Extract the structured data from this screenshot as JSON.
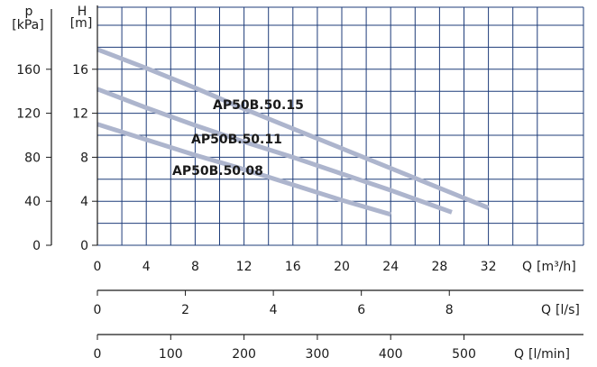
{
  "chart_data": {
    "type": "line",
    "title": "",
    "colors": {
      "curve": "#adb5cd",
      "grid": "#1f3d7a",
      "axis": "#1a1a1a",
      "text": "#1a1a1a"
    },
    "grid": true,
    "y_head": {
      "label": "H",
      "unit": "[m]",
      "ticks": [
        0,
        4,
        8,
        12,
        16
      ],
      "ylim": [
        0,
        20
      ]
    },
    "p_axis": {
      "label": "p",
      "unit": "[kPa]",
      "ticks": [
        0,
        40,
        80,
        120,
        160
      ],
      "range": [
        0,
        200
      ]
    },
    "x_flow": {
      "label": "Q",
      "unit": "[m³/h]",
      "ticks": [
        0,
        4,
        8,
        12,
        16,
        20,
        24,
        28,
        32
      ],
      "xlim": [
        0,
        36
      ]
    },
    "x_ls": {
      "label": "Q",
      "unit": "[l/s]",
      "ticks": [
        0,
        2,
        4,
        6,
        8
      ],
      "range": [
        0,
        10
      ]
    },
    "x_lmin": {
      "label": "Q",
      "unit": "[l/min]",
      "ticks": [
        0,
        100,
        200,
        300,
        400,
        500
      ],
      "range": [
        0,
        600
      ]
    },
    "series": [
      {
        "name": "AP50B.50.15",
        "x": [
          0,
          4,
          8,
          12,
          16,
          20,
          24,
          28,
          32
        ],
        "y": [
          17.8,
          16.1,
          14.3,
          12.4,
          10.6,
          8.8,
          7.0,
          5.2,
          3.4
        ]
      },
      {
        "name": "AP50B.50.11",
        "x": [
          0,
          4,
          8,
          12,
          16,
          20,
          24,
          29
        ],
        "y": [
          14.2,
          12.5,
          10.9,
          9.4,
          8.0,
          6.5,
          5.0,
          3.0
        ]
      },
      {
        "name": "AP50B.50.08",
        "x": [
          0,
          4,
          8,
          12,
          16,
          20,
          24
        ],
        "y": [
          11.0,
          9.6,
          8.2,
          6.9,
          5.5,
          4.1,
          2.8
        ]
      }
    ]
  }
}
